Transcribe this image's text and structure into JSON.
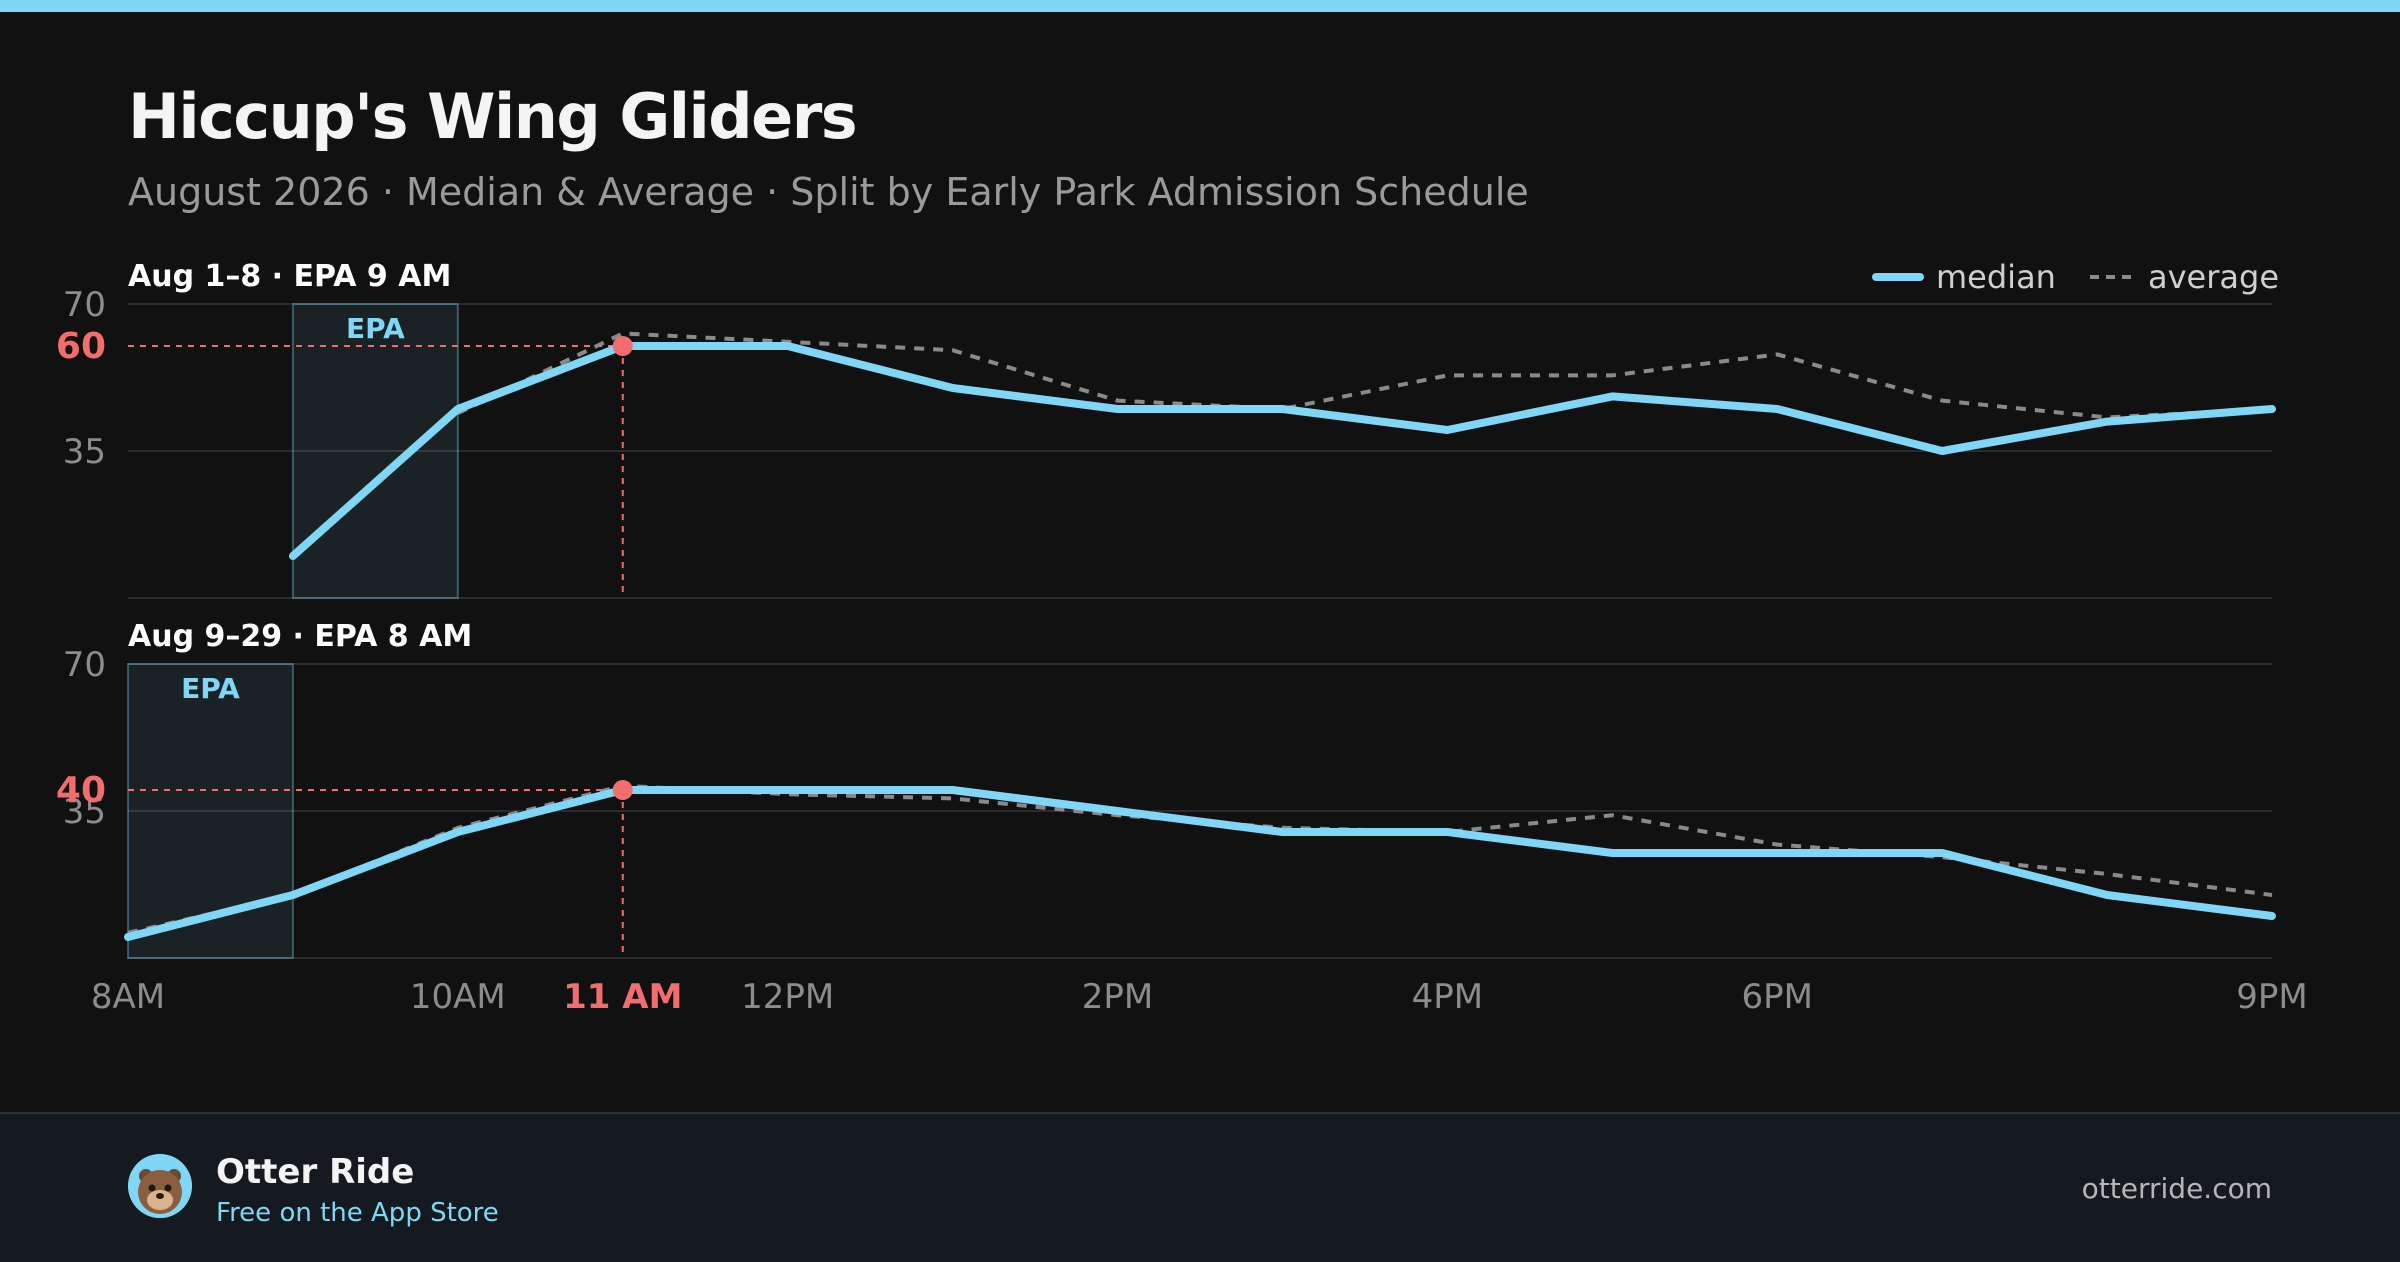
{
  "title": "Hiccup's Wing Gliders",
  "subtitle": "August 2026 · Median & Average · Split by Early Park Admission Schedule",
  "colors": {
    "accent": "#7fd6f5",
    "highlight": "#f26d6d",
    "average": "#8a8a8a",
    "background": "#111111",
    "footer": "#141a1f"
  },
  "chart_data": {
    "type": "line",
    "x_ticks": [
      "8AM",
      "10AM",
      "12PM",
      "2PM",
      "4PM",
      "6PM",
      "9PM"
    ],
    "highlight_x_label": "11 AM",
    "highlight_hour": 11,
    "legend": {
      "median": "median",
      "average": "average",
      "placement": "top-right"
    },
    "grid": true,
    "panels": [
      {
        "label": "Aug 1–8 · EPA 9 AM",
        "epa_label": "EPA",
        "epa_hours": [
          9,
          10
        ],
        "ylim": [
          0,
          70
        ],
        "y_ticks": [
          "35",
          "70"
        ],
        "highlight_value": "60",
        "series": [
          {
            "name": "median",
            "x": [
              9,
              10,
              11,
              12,
              13,
              14,
              15,
              16,
              17,
              18,
              19,
              20,
              21
            ],
            "values": [
              10,
              45,
              60,
              60,
              50,
              45,
              45,
              40,
              48,
              45,
              35,
              42,
              45
            ]
          },
          {
            "name": "average",
            "x": [
              10,
              11,
              12,
              13,
              14,
              15,
              16,
              17,
              18,
              19,
              20,
              21
            ],
            "values": [
              44,
              63,
              61,
              59,
              47,
              45,
              53,
              53,
              58,
              47,
              43,
              45
            ]
          }
        ]
      },
      {
        "label": "Aug 9–29 · EPA 8 AM",
        "epa_label": "EPA",
        "epa_hours": [
          8,
          9
        ],
        "ylim": [
          0,
          70
        ],
        "y_ticks": [
          "35",
          "70"
        ],
        "highlight_value": "40",
        "series": [
          {
            "name": "median",
            "x": [
              8,
              9,
              10,
              11,
              12,
              13,
              14,
              15,
              16,
              17,
              18,
              19,
              20,
              21
            ],
            "values": [
              5,
              15,
              30,
              40,
              40,
              40,
              35,
              30,
              30,
              25,
              25,
              25,
              15,
              10
            ]
          },
          {
            "name": "average",
            "x": [
              8,
              9,
              10,
              11,
              12,
              13,
              14,
              15,
              16,
              17,
              18,
              19,
              20,
              21
            ],
            "values": [
              6,
              15,
              31,
              41,
              39,
              38,
              34,
              31,
              30,
              34,
              27,
              24,
              20,
              15
            ]
          }
        ]
      }
    ]
  },
  "footer": {
    "brand_name": "Otter Ride",
    "tagline": "Free on the App Store",
    "site": "otterride.com",
    "logo_icon": "otter-icon"
  }
}
